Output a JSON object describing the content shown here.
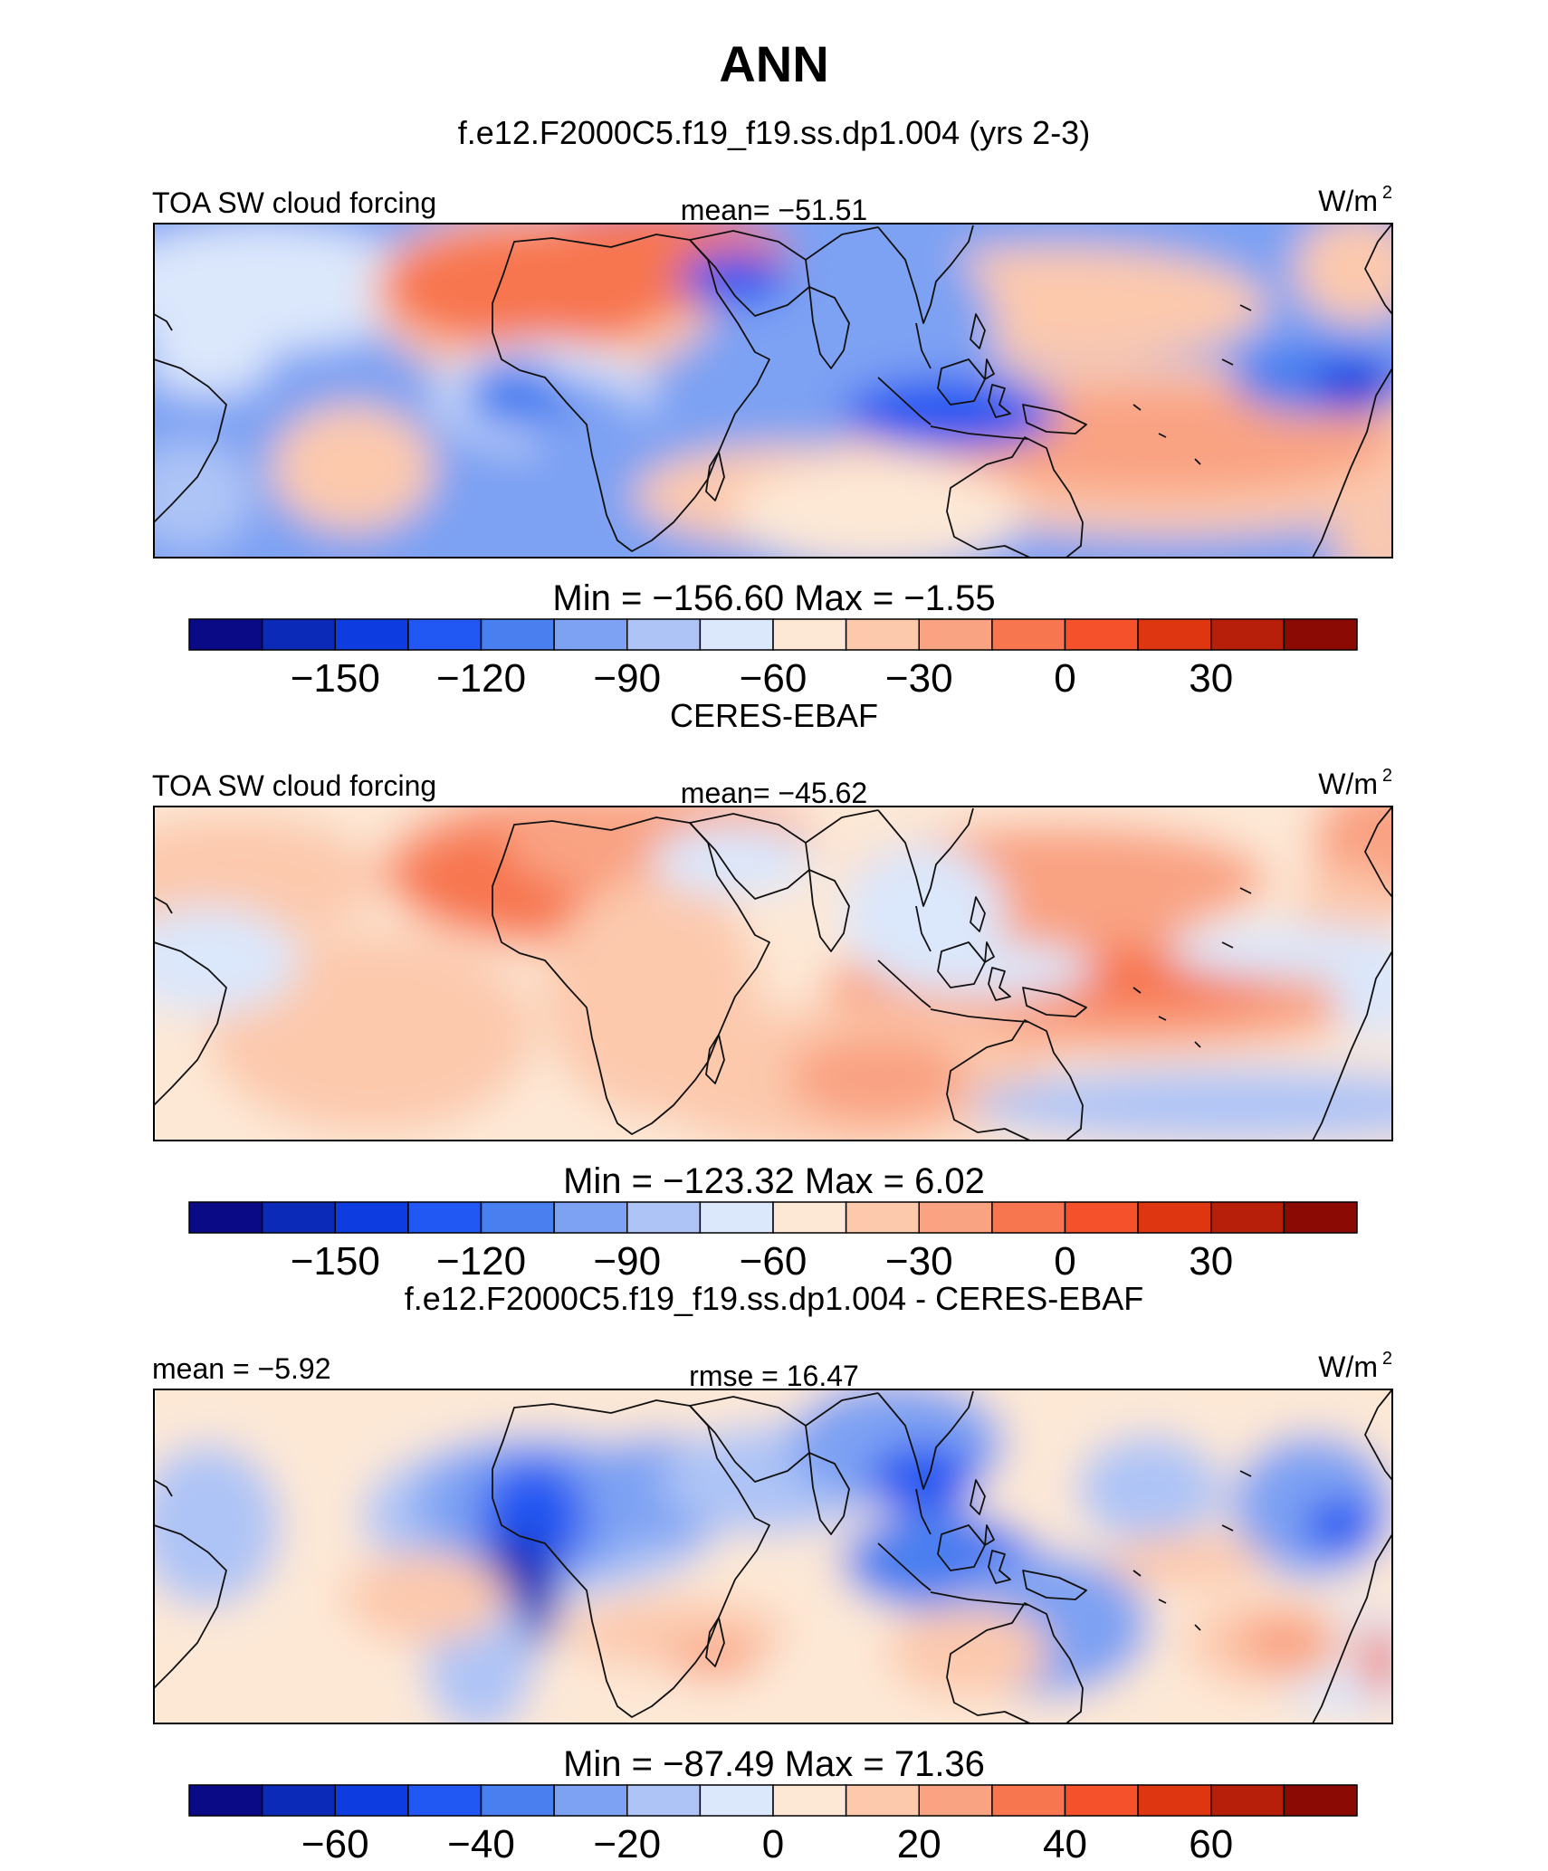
{
  "title": "ANN",
  "palette_colors": [
    "#0a0a86",
    "#0b2ab8",
    "#0d3de0",
    "#2157f2",
    "#4a7ff0",
    "#7da1f3",
    "#aec4f6",
    "#dbe7fb",
    "#fde8d6",
    "#fcc9ad",
    "#f9a383",
    "#f7764f",
    "#f5512a",
    "#dd3610",
    "#b81f0a",
    "#8b0a03"
  ],
  "panels": [
    {
      "header": "f.e12.F2000C5.f19_f19.ss.dp1.004 (yrs 2-3)",
      "left_label": "TOA SW cloud forcing",
      "center_label": "mean= −51.51",
      "units_label": "W/m",
      "units_sup": "2",
      "minmax_label": "Min  =  −156.60  Max  =   −1.55",
      "colorbar_ticks": [
        "−150",
        "−120",
        "−90",
        "−60",
        "−30",
        "0",
        "30"
      ]
    },
    {
      "header": "CERES-EBAF",
      "left_label": "TOA SW cloud forcing",
      "center_label": "mean= −45.62",
      "units_label": "W/m",
      "units_sup": "2",
      "minmax_label": "Min  =  −123.32  Max  =    6.02",
      "colorbar_ticks": [
        "−150",
        "−120",
        "−90",
        "−60",
        "−30",
        "0",
        "30"
      ]
    },
    {
      "header": "f.e12.F2000C5.f19_f19.ss.dp1.004 - CERES-EBAF",
      "left_label": "mean =   −5.92",
      "center_label": "rmse =   16.47",
      "units_label": "W/m",
      "units_sup": "2",
      "minmax_label": "Min  =  −87.49  Max  =   71.36",
      "colorbar_ticks": [
        "−60",
        "−40",
        "−20",
        "0",
        "20",
        "40",
        "60"
      ]
    }
  ]
}
